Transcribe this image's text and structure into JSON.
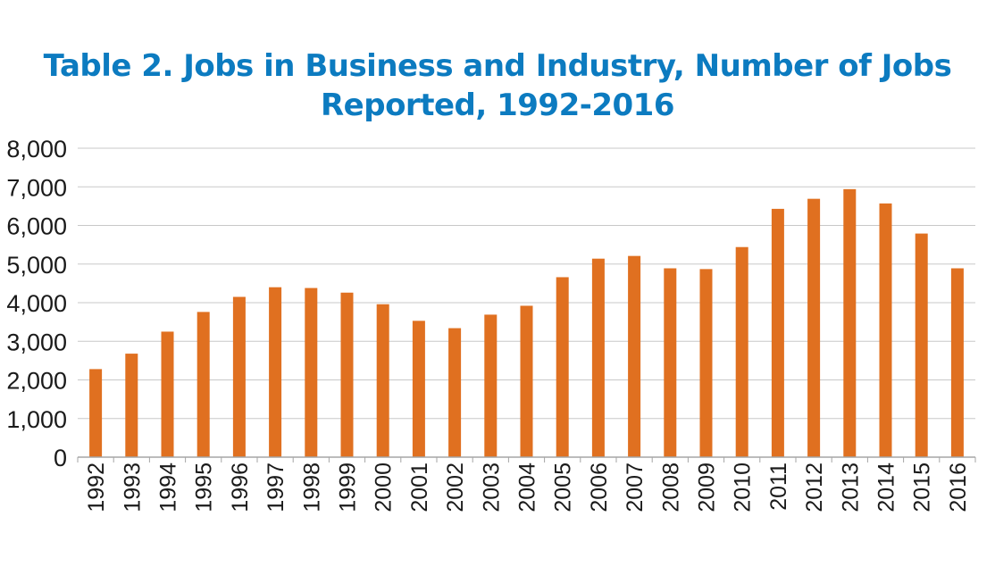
{
  "chart_data": {
    "type": "bar",
    "title_line1": "Table 2. Jobs in Business and Industry, Number of Jobs",
    "title_line2": "Reported, 1992-2016",
    "xlabel": "",
    "ylabel": "",
    "categories": [
      "1992",
      "1993",
      "1994",
      "1995",
      "1996",
      "1997",
      "1998",
      "1999",
      "2000",
      "2001",
      "2002",
      "2003",
      "2004",
      "2005",
      "2006",
      "2007",
      "2008",
      "2009",
      "2010",
      "2011",
      "2012",
      "2013",
      "2014",
      "2015",
      "2016"
    ],
    "values": [
      2280,
      2680,
      3250,
      3760,
      4150,
      4400,
      4380,
      4260,
      3960,
      3530,
      3340,
      3690,
      3920,
      4660,
      5140,
      5210,
      4890,
      4870,
      5440,
      6430,
      6690,
      6940,
      6570,
      5790,
      4890
    ],
    "ylim": [
      0,
      8000
    ],
    "yticks": [
      0,
      1000,
      2000,
      3000,
      4000,
      5000,
      6000,
      7000,
      8000
    ],
    "ytick_labels": [
      "0",
      "1,000",
      "2,000",
      "3,000",
      "4,000",
      "5,000",
      "6,000",
      "7,000",
      "8,000"
    ],
    "grid": true,
    "legend": "none",
    "colors": {
      "bar": "#e07020",
      "title": "#0c7bc0",
      "grid": "#c8c8c8",
      "axis": "#a6a6a6"
    }
  }
}
